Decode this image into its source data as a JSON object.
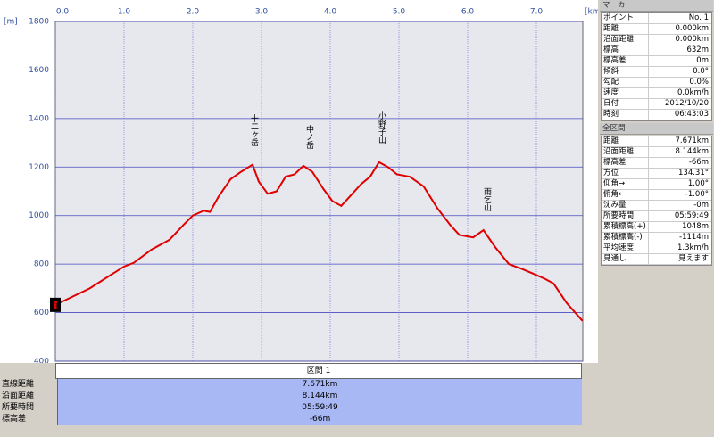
{
  "chart_data": {
    "type": "line",
    "ylabel": "[m]",
    "xlabel": "[km]",
    "color": "#e00000",
    "x": [
      0,
      0.5,
      1.0,
      1.14,
      1.4,
      1.66,
      1.86,
      2.0,
      2.16,
      2.25,
      2.38,
      2.55,
      2.7,
      2.87,
      2.96,
      3.09,
      3.22,
      3.35,
      3.48,
      3.61,
      3.74,
      3.9,
      4.03,
      4.16,
      4.29,
      4.45,
      4.58,
      4.71,
      4.84,
      4.97,
      5.16,
      5.36,
      5.56,
      5.75,
      5.88,
      6.08,
      6.23,
      6.4,
      6.6,
      6.79,
      6.96,
      7.12,
      7.25,
      7.44,
      7.671
    ],
    "values": [
      632,
      700,
      790,
      805,
      860,
      900,
      960,
      1000,
      1020,
      1015,
      1080,
      1150,
      1180,
      1210,
      1140,
      1090,
      1100,
      1160,
      1170,
      1205,
      1180,
      1110,
      1060,
      1040,
      1080,
      1130,
      1160,
      1220,
      1200,
      1170,
      1160,
      1120,
      1030,
      960,
      920,
      910,
      940,
      870,
      800,
      780,
      760,
      740,
      720,
      640,
      566
    ],
    "xlim": [
      0,
      7.671
    ],
    "ylim": [
      400,
      1800
    ],
    "xticks": [
      {
        "value": 0,
        "label": "0.0"
      },
      {
        "value": 1,
        "label": "1.0"
      },
      {
        "value": 2,
        "label": "2.0"
      },
      {
        "value": 3,
        "label": "3.0"
      },
      {
        "value": 4,
        "label": "4.0"
      },
      {
        "value": 5,
        "label": "5.0"
      },
      {
        "value": 6,
        "label": "6.0"
      },
      {
        "value": 7,
        "label": "7.0"
      }
    ],
    "yticks": [
      400,
      600,
      800,
      1000,
      1200,
      1400,
      1600,
      1800
    ],
    "grid": true,
    "annotations": [
      "十二ヶ岳",
      "中ノ岳",
      "小野子山",
      "雨乞山"
    ]
  },
  "segment": {
    "title": "区間 1",
    "rows": [
      [
        "直線距離",
        "7.671km"
      ],
      [
        "沿面距離",
        "8.144km"
      ],
      [
        "所要時間",
        "05:59:49"
      ],
      [
        "標高差",
        "-66m"
      ]
    ]
  },
  "marker": {
    "title": "マーカー",
    "rows": [
      [
        "ポイント:",
        "No. 1"
      ],
      [
        "距離",
        "0.000km"
      ],
      [
        "沿面距離",
        "0.000km"
      ],
      [
        "標高",
        "632m"
      ],
      [
        "標高差",
        "0m"
      ],
      [
        "傾斜",
        "0.0°"
      ],
      [
        "勾配",
        "0.0%"
      ],
      [
        "速度",
        "0.0km/h"
      ],
      [
        "日付",
        "2012/10/20"
      ],
      [
        "時刻",
        "06:43:03"
      ]
    ]
  },
  "total": {
    "title": "全区間",
    "rows": [
      [
        "距離",
        "7.671km"
      ],
      [
        "沿面距離",
        "8.144km"
      ],
      [
        "標高差",
        "-66m"
      ],
      [
        "方位",
        "134.31°"
      ],
      [
        "仰角→",
        "1.00°"
      ],
      [
        "俯角←",
        "-1.00°"
      ],
      [
        "沈み量",
        "-0m"
      ],
      [
        "所要時間",
        "05:59:49"
      ],
      [
        "累積標高(+)",
        "1048m"
      ],
      [
        "累積標高(-)",
        "-1114m"
      ],
      [
        "平均速度",
        "1.3km/h"
      ],
      [
        "見通し",
        "見えます"
      ]
    ]
  }
}
